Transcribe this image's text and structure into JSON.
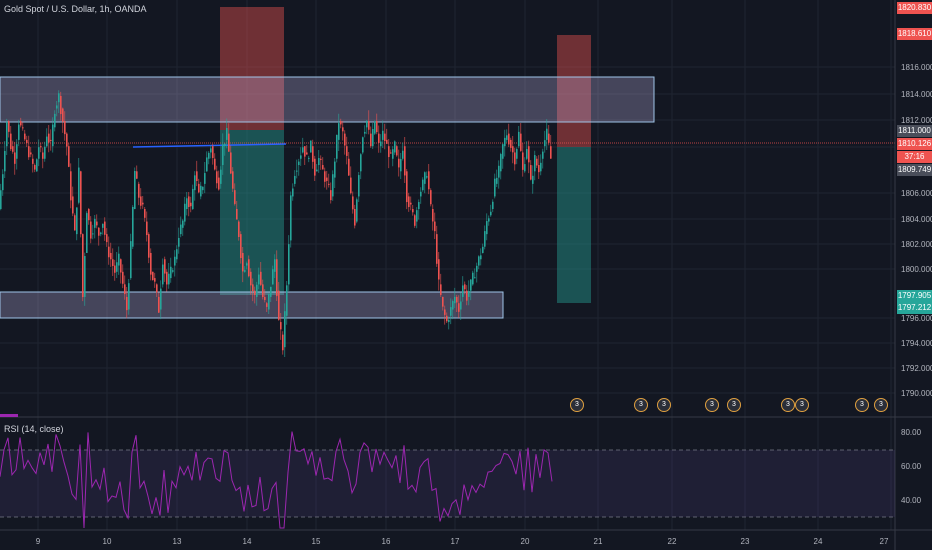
{
  "header": {
    "title": "Gold Spot / U.S. Dollar, 1h, OANDA"
  },
  "rsi": {
    "title": "RSI (14, close)",
    "axis_labels": [
      "80.00",
      "60.00",
      "40.00"
    ]
  },
  "price_axis": {
    "labels": [
      "1816.000",
      "1814.000",
      "1812.000",
      "1806.000",
      "1804.000",
      "1802.000",
      "1800.000",
      "1796.000",
      "1794.000",
      "1792.000",
      "1790.000"
    ]
  },
  "price_tags": {
    "top_red": "1820.830",
    "second_red": "1818.610",
    "grey_level": "1811.000",
    "current_price": "1810.126",
    "countdown": "37:16",
    "lower_grey": "1809.749",
    "green_top": "1797.905",
    "green_bottom": "1797.212"
  },
  "time_axis": {
    "labels": [
      "9",
      "10",
      "13",
      "14",
      "15",
      "16",
      "17",
      "20",
      "21",
      "22",
      "23",
      "24",
      "27"
    ]
  },
  "events": [
    "3",
    "3",
    "3",
    "3",
    "3",
    "3",
    "3",
    "3",
    "3"
  ],
  "colors": {
    "background": "#131722",
    "up_candle": "#26a69a",
    "down_candle": "#ef5350",
    "zone_fill": "rgba(200,190,240,0.28)",
    "zone_border": "#9fc4e8",
    "stop_loss": "rgba(239,83,80,0.4)",
    "take_profit": "rgba(38,166,154,0.4)",
    "rsi_line": "#9c27b0",
    "rsi_band": "rgba(126,87,194,0.12)"
  },
  "chart_data": {
    "type": "candlestick",
    "symbol": "Gold Spot / U.S. Dollar",
    "interval": "1h",
    "ylim": [
      1789,
      1821
    ],
    "x_ticks": [
      "9",
      "10",
      "13",
      "14",
      "15",
      "16",
      "17",
      "20",
      "21",
      "22",
      "23",
      "24",
      "27"
    ],
    "close_path": [
      [
        0,
        1805
      ],
      [
        4,
        1808
      ],
      [
        8,
        1812
      ],
      [
        12,
        1810
      ],
      [
        16,
        1809
      ],
      [
        20,
        1812
      ],
      [
        24,
        1811
      ],
      [
        28,
        1810
      ],
      [
        32,
        1809
      ],
      [
        36,
        1808
      ],
      [
        40,
        1810
      ],
      [
        44,
        1809
      ],
      [
        48,
        1811
      ],
      [
        52,
        1810
      ],
      [
        56,
        1813
      ],
      [
        60,
        1814
      ],
      [
        64,
        1812
      ],
      [
        68,
        1810
      ],
      [
        72,
        1806
      ],
      [
        76,
        1803
      ],
      [
        80,
        1808
      ],
      [
        84,
        1798
      ],
      [
        88,
        1805
      ],
      [
        92,
        1803
      ],
      [
        96,
        1804
      ],
      [
        100,
        1803
      ],
      [
        104,
        1804
      ],
      [
        108,
        1802
      ],
      [
        112,
        1801
      ],
      [
        116,
        1800
      ],
      [
        120,
        1801
      ],
      [
        124,
        1799
      ],
      [
        128,
        1797
      ],
      [
        132,
        1802
      ],
      [
        136,
        1808
      ],
      [
        140,
        1806
      ],
      [
        144,
        1805
      ],
      [
        148,
        1803
      ],
      [
        152,
        1800
      ],
      [
        156,
        1799
      ],
      [
        160,
        1797
      ],
      [
        164,
        1801
      ],
      [
        168,
        1799
      ],
      [
        172,
        1800
      ],
      [
        176,
        1801
      ],
      [
        180,
        1803
      ],
      [
        184,
        1804
      ],
      [
        188,
        1806
      ],
      [
        192,
        1805
      ],
      [
        196,
        1808
      ],
      [
        200,
        1806
      ],
      [
        204,
        1807
      ],
      [
        208,
        1809
      ],
      [
        212,
        1810
      ],
      [
        216,
        1808
      ],
      [
        220,
        1807
      ],
      [
        224,
        1810
      ],
      [
        228,
        1811
      ],
      [
        232,
        1808
      ],
      [
        236,
        1805
      ],
      [
        240,
        1803
      ],
      [
        244,
        1800
      ],
      [
        248,
        1801
      ],
      [
        252,
        1799
      ],
      [
        256,
        1798
      ],
      [
        260,
        1800
      ],
      [
        264,
        1798
      ],
      [
        268,
        1797
      ],
      [
        272,
        1799
      ],
      [
        276,
        1801
      ],
      [
        280,
        1796
      ],
      [
        284,
        1794
      ],
      [
        288,
        1799
      ],
      [
        292,
        1806
      ],
      [
        296,
        1808
      ],
      [
        300,
        1809
      ],
      [
        304,
        1810
      ],
      [
        308,
        1809
      ],
      [
        312,
        1810
      ],
      [
        316,
        1808
      ],
      [
        320,
        1809
      ],
      [
        324,
        1808
      ],
      [
        328,
        1807
      ],
      [
        332,
        1806
      ],
      [
        336,
        1809
      ],
      [
        340,
        1812
      ],
      [
        344,
        1811
      ],
      [
        348,
        1809
      ],
      [
        352,
        1806
      ],
      [
        356,
        1804
      ],
      [
        360,
        1808
      ],
      [
        364,
        1811
      ],
      [
        368,
        1812
      ],
      [
        372,
        1810
      ],
      [
        376,
        1812
      ],
      [
        380,
        1810
      ],
      [
        384,
        1811
      ],
      [
        388,
        1810
      ],
      [
        392,
        1809
      ],
      [
        396,
        1810
      ],
      [
        400,
        1808
      ],
      [
        404,
        1810
      ],
      [
        408,
        1806
      ],
      [
        412,
        1805
      ],
      [
        416,
        1804
      ],
      [
        420,
        1806
      ],
      [
        424,
        1807
      ],
      [
        428,
        1808
      ],
      [
        432,
        1805
      ],
      [
        436,
        1803
      ],
      [
        440,
        1799
      ],
      [
        444,
        1797
      ],
      [
        448,
        1796
      ],
      [
        452,
        1797
      ],
      [
        456,
        1798
      ],
      [
        460,
        1797
      ],
      [
        464,
        1799
      ],
      [
        468,
        1798
      ],
      [
        472,
        1799
      ],
      [
        476,
        1800
      ],
      [
        480,
        1801
      ],
      [
        484,
        1802
      ],
      [
        488,
        1804
      ],
      [
        492,
        1805
      ],
      [
        496,
        1807
      ],
      [
        500,
        1808
      ],
      [
        504,
        1810
      ],
      [
        508,
        1811
      ],
      [
        512,
        1810
      ],
      [
        516,
        1809
      ],
      [
        520,
        1811
      ],
      [
        524,
        1808
      ],
      [
        528,
        1810
      ],
      [
        532,
        1807
      ],
      [
        536,
        1809
      ],
      [
        540,
        1808
      ],
      [
        544,
        1810
      ],
      [
        548,
        1811
      ],
      [
        552,
        1809
      ]
    ],
    "supply_zone": [
      1812,
      1815.3
    ],
    "demand_zone": [
      1796.6,
      1798
    ],
    "current_price": 1810.126,
    "rsi_levels": [
      70,
      30
    ],
    "rsi_ylim": [
      25,
      85
    ]
  }
}
